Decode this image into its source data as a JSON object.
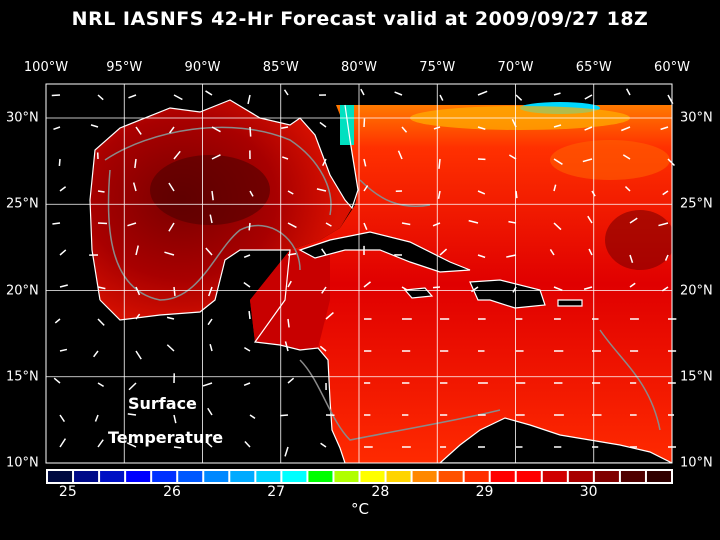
{
  "title": "NRL IASNFS  42-Hr Forecast valid at 2009/09/27 18Z",
  "lon_labels": [
    "100°W",
    "95°W",
    "90°W",
    "85°W",
    "80°W",
    "75°W",
    "70°W",
    "65°W",
    "60°W"
  ],
  "lat_labels": [
    "30°N",
    "25°N",
    "20°N",
    "15°N",
    "10°N"
  ],
  "map_label": {
    "line1": "Surface",
    "line2": "Temperature"
  },
  "colorbar": {
    "unit": "°C",
    "tick_labels": [
      "25",
      "26",
      "27",
      "28",
      "29",
      "30"
    ],
    "range": [
      24.8,
      30.8
    ],
    "colors": [
      "#000a40",
      "#000a88",
      "#0010c4",
      "#0000ff",
      "#0030ff",
      "#0058ff",
      "#0088ff",
      "#00aaff",
      "#00d4ff",
      "#00ffff",
      "#00ff00",
      "#b0ff00",
      "#ffff00",
      "#ffd400",
      "#ff8800",
      "#ff5200",
      "#ff3000",
      "#ff0000",
      "#ff0000",
      "#d00000",
      "#a80000",
      "#800000",
      "#500000",
      "#300000"
    ]
  }
}
